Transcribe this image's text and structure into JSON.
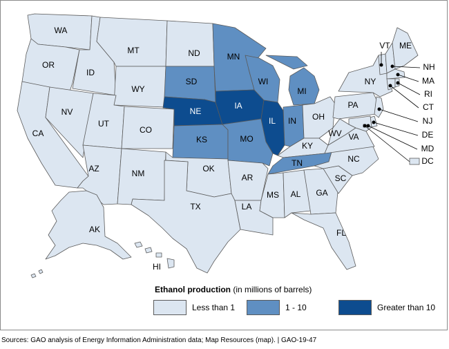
{
  "colors": {
    "low": "#dce6f1",
    "mid": "#5f8fc2",
    "high": "#0d4c8f",
    "border": "#5a5a5a"
  },
  "legend": {
    "title_bold": "Ethanol production",
    "title_rest": " (in millions of barrels)",
    "items": [
      {
        "label": "Less than 1",
        "level": "low"
      },
      {
        "label": "1 - 10",
        "level": "mid"
      },
      {
        "label": "Greater than 10",
        "level": "high"
      }
    ]
  },
  "source": "Sources: GAO analysis of Energy Information Administration data; Map Resources (map).  |  GAO-19-47",
  "states": {
    "WA": "low",
    "OR": "low",
    "CA": "low",
    "ID": "low",
    "NV": "low",
    "MT": "low",
    "WY": "low",
    "UT": "low",
    "AZ": "low",
    "CO": "low",
    "NM": "low",
    "ND": "low",
    "SD": "mid",
    "NE": "high",
    "KS": "mid",
    "OK": "low",
    "TX": "low",
    "MN": "mid",
    "IA": "high",
    "MO": "mid",
    "AR": "low",
    "LA": "low",
    "WI": "mid",
    "IL": "high",
    "MI": "mid",
    "IN": "mid",
    "OH": "low",
    "KY": "low",
    "TN": "mid",
    "MS": "low",
    "AL": "low",
    "GA": "low",
    "FL": "low",
    "SC": "low",
    "NC": "low",
    "VA": "low",
    "WV": "low",
    "PA": "low",
    "NY": "low",
    "VT": "low",
    "NH": "low",
    "ME": "low",
    "MA": "low",
    "RI": "low",
    "CT": "low",
    "NJ": "low",
    "DE": "low",
    "MD": "low",
    "DC": "low",
    "AK": "low",
    "HI": "low"
  }
}
